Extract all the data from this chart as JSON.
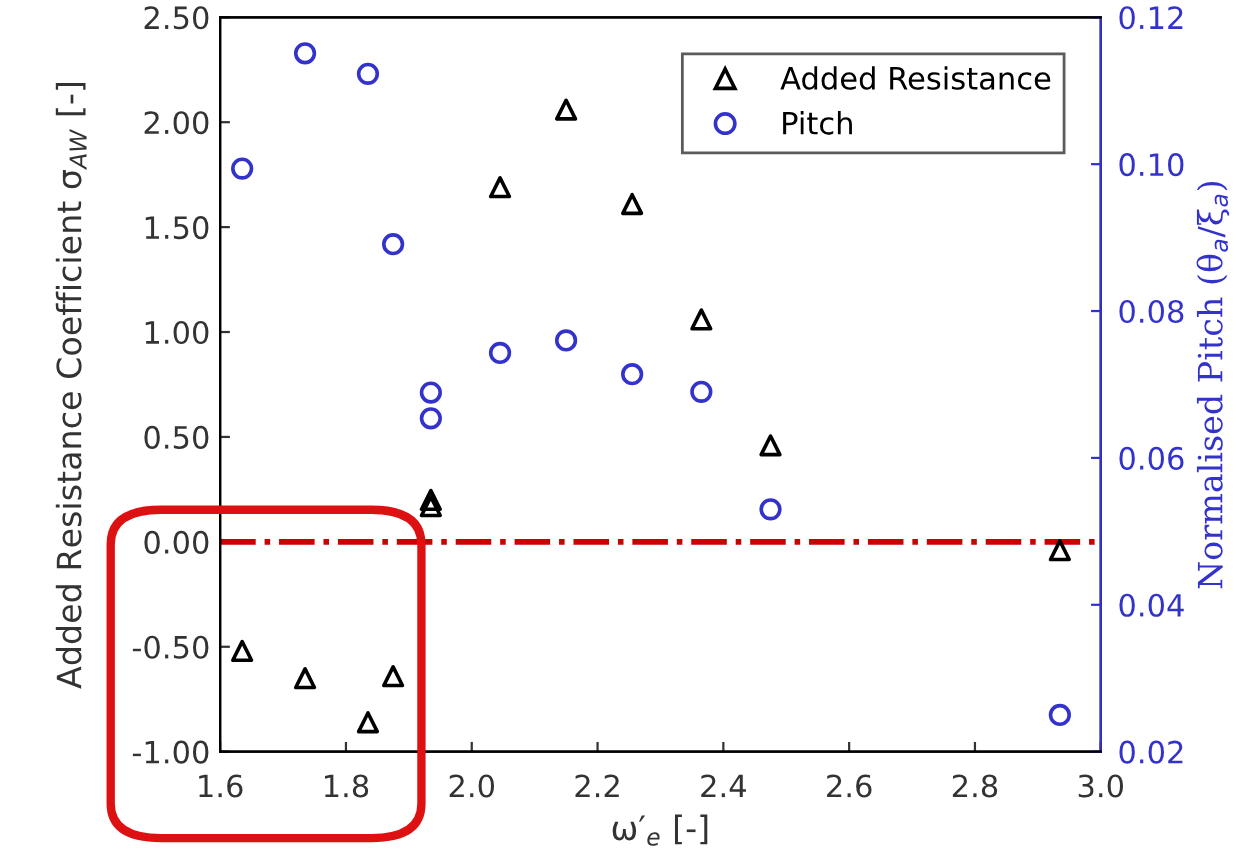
{
  "chart_data": {
    "type": "scatter",
    "xlabel": "ω′$_{e}$ [-]",
    "ylabel": "Added Resistance Coefficient σ$_{AW}$ [-]",
    "y2label": "Normalised Pitch (θ$_{a}$/ξ$_{a}$)",
    "xlim": [
      1.6,
      3.0
    ],
    "xticks": [
      1.6,
      1.8,
      {
        "value": 2.0,
        "label": "2.0"
      },
      2.2,
      2.4,
      2.6,
      2.8,
      {
        "value": 3.0,
        "label": "3.0"
      }
    ],
    "ylim": [
      -1.0,
      2.5
    ],
    "yticks": [
      {
        "value": -1.0,
        "label": "-1.00"
      },
      {
        "value": -0.5,
        "label": "-0.50"
      },
      {
        "value": 0.0,
        "label": "0.00"
      },
      {
        "value": 0.5,
        "label": "0.50"
      },
      {
        "value": 1.0,
        "label": "1.00"
      },
      {
        "value": 1.5,
        "label": "1.50"
      },
      {
        "value": 2.0,
        "label": "2.00"
      },
      {
        "value": 2.5,
        "label": "2.50"
      }
    ],
    "y2lim": [
      0.02,
      0.12
    ],
    "y2ticks": [
      0.02,
      0.04,
      0.06,
      0.08,
      {
        "value": 0.1,
        "label": "0.10"
      },
      0.12
    ],
    "grid": false,
    "legend": "top right",
    "series": [
      {
        "name": "Added Resistance",
        "color": "#000000",
        "marker": "triangle",
        "x": [
          1.635,
          1.735,
          1.835,
          1.875,
          1.935,
          1.935,
          2.045,
          2.15,
          2.255,
          2.365,
          2.475,
          2.935
        ],
        "values": [
          -0.52,
          -0.65,
          -0.86,
          -0.64,
          0.2,
          0.17,
          1.69,
          2.06,
          1.61,
          1.06,
          0.46,
          -0.04
        ]
      },
      {
        "name": "Pitch",
        "color": "#3333cc",
        "marker": "circle",
        "axis": "y2",
        "x": [
          1.635,
          1.735,
          1.835,
          1.875,
          1.935,
          1.935,
          2.045,
          2.15,
          2.255,
          2.365,
          2.475,
          2.935
        ],
        "values": [
          0.0994,
          0.1151,
          0.1123,
          0.0891,
          0.0689,
          0.0654,
          0.0743,
          0.076,
          0.0714,
          0.069,
          0.053,
          0.025
        ]
      }
    ],
    "ref_lines": [
      {
        "axis": "y",
        "value": 0.0,
        "color": "#cc0000",
        "line_style": "dashdot"
      }
    ]
  }
}
